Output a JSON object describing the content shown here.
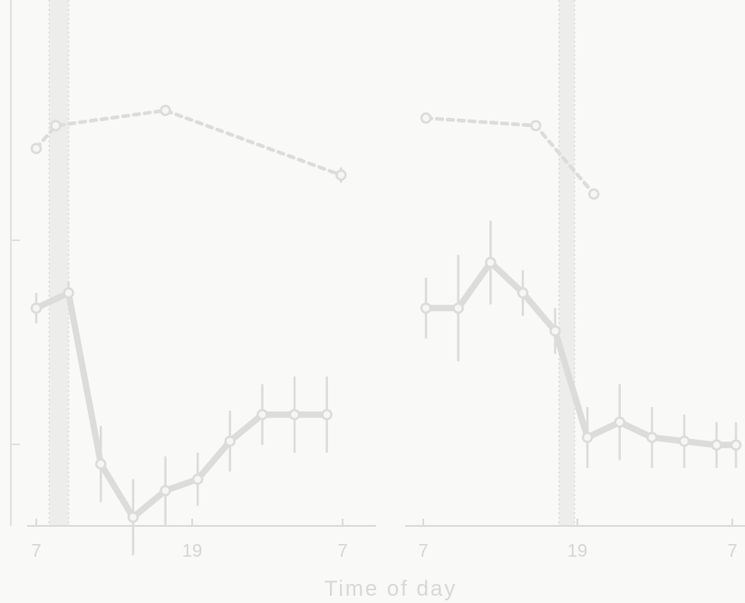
{
  "chart_data": [
    {
      "type": "line",
      "panel": "left",
      "x_ticks": [
        "7",
        "19",
        "7"
      ],
      "xlim": [
        7,
        31
      ],
      "series": [
        {
          "style": "dashed-open-circle",
          "x": [
            7.0,
            8.5,
            17.0,
            30.6
          ],
          "y": [
            10.0,
            13.0,
            15.0,
            6.5
          ],
          "err": [
            0,
            0,
            0,
            1.0
          ]
        },
        {
          "style": "solid-open-circle",
          "x": [
            7.0,
            9.5,
            12.0,
            14.5,
            17.0,
            19.5,
            22.0,
            24.5,
            27.0,
            29.5
          ],
          "y": [
            -11.0,
            -9.0,
            -31.5,
            -38.5,
            -35.0,
            -33.5,
            -28.5,
            -25.0,
            -25.0,
            -25.0
          ],
          "err": [
            2.0,
            1.5,
            5.0,
            5.0,
            4.5,
            3.5,
            4.0,
            4.0,
            5.0,
            5.0
          ]
        }
      ],
      "bands": [
        [
          8.0,
          9.5
        ]
      ]
    },
    {
      "type": "line",
      "panel": "right",
      "x_ticks": [
        "7",
        "19",
        "7"
      ],
      "xlim": [
        7,
        31
      ],
      "series": [
        {
          "style": "dashed-open-circle",
          "x": [
            7.0,
            15.5,
            20.0
          ],
          "y": [
            14.0,
            13.0,
            4.0
          ],
          "err": [
            0,
            0,
            0
          ]
        },
        {
          "style": "solid-open-circle",
          "x": [
            7.0,
            9.5,
            12.0,
            14.5,
            17.0,
            19.5,
            22.0,
            24.5,
            27.0,
            29.5,
            31.0
          ],
          "y": [
            -11.0,
            -11.0,
            -5.0,
            -9.0,
            -14.0,
            -28.0,
            -26.0,
            -28.0,
            -28.5,
            -29.0,
            -29.0
          ],
          "err": [
            4.0,
            7.0,
            5.5,
            3.0,
            3.0,
            4.0,
            5.0,
            4.0,
            3.5,
            3.0,
            3.0
          ]
        }
      ],
      "bands": [
        [
          17.3,
          18.5
        ]
      ]
    }
  ],
  "xlabel": "Time of day",
  "colors": {
    "ink": "#dcdcda",
    "band": "#e4e4e2",
    "background": "#f9f9f8"
  }
}
